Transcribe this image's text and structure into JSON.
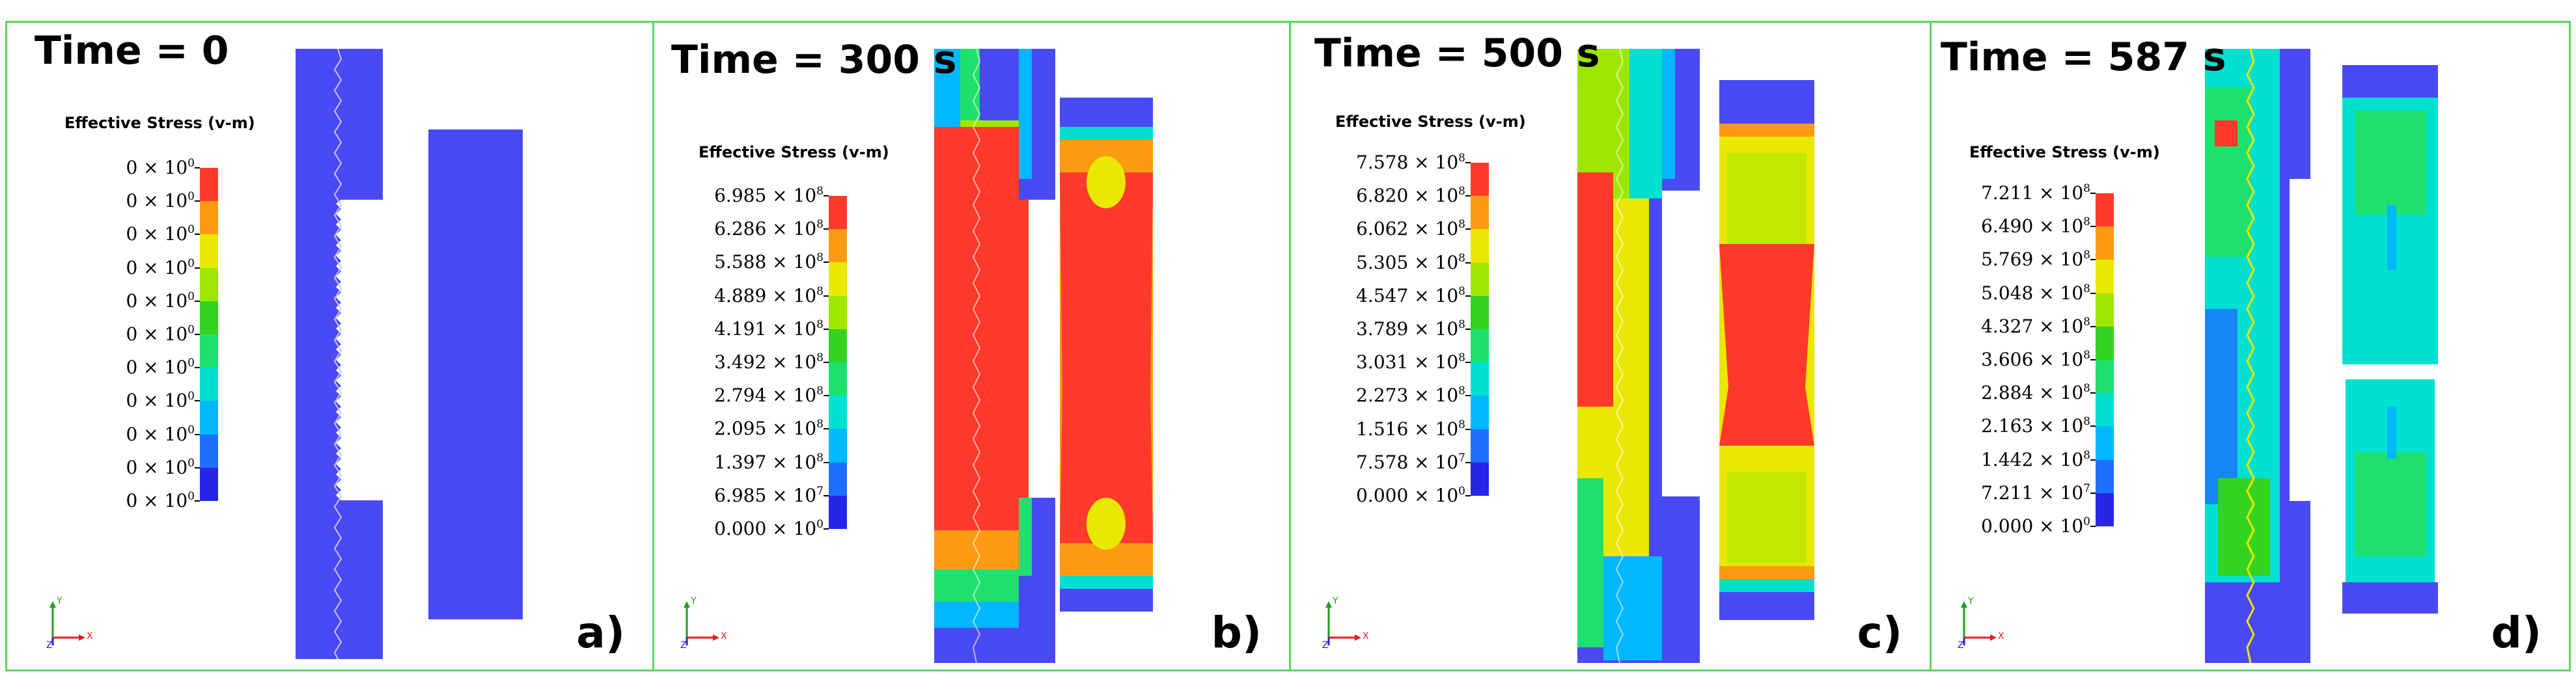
{
  "figure": {
    "colorbar_colors": [
      "#2626e6",
      "#1f6fff",
      "#00b8ff",
      "#00e0d0",
      "#1ee06e",
      "#33d420",
      "#9ee600",
      "#e8e800",
      "#ff9a14",
      "#ff3a2a"
    ],
    "body_color": "#4a4af5",
    "panels": [
      {
        "id": "a",
        "time_label": "Time = 0",
        "legend_title": "Effective Stress (v-m)",
        "ticks": [
          {
            "m": "0",
            "e": "0"
          },
          {
            "m": "0",
            "e": "0"
          },
          {
            "m": "0",
            "e": "0"
          },
          {
            "m": "0",
            "e": "0"
          },
          {
            "m": "0",
            "e": "0"
          },
          {
            "m": "0",
            "e": "0"
          },
          {
            "m": "0",
            "e": "0"
          },
          {
            "m": "0",
            "e": "0"
          },
          {
            "m": "0",
            "e": "0"
          },
          {
            "m": "0",
            "e": "0"
          },
          {
            "m": "0",
            "e": "0"
          }
        ],
        "sub_label": "a)",
        "axis_labels": {
          "x": "X",
          "y": "Y",
          "z": "Z"
        }
      },
      {
        "id": "b",
        "time_label": "Time = 300 s",
        "legend_title": "Effective Stress (v-m)",
        "ticks": [
          {
            "m": "6.985",
            "e": "8"
          },
          {
            "m": "6.286",
            "e": "8"
          },
          {
            "m": "5.588",
            "e": "8"
          },
          {
            "m": "4.889",
            "e": "8"
          },
          {
            "m": "4.191",
            "e": "8"
          },
          {
            "m": "3.492",
            "e": "8"
          },
          {
            "m": "2.794",
            "e": "8"
          },
          {
            "m": "2.095",
            "e": "8"
          },
          {
            "m": "1.397",
            "e": "8"
          },
          {
            "m": "6.985",
            "e": "7"
          },
          {
            "m": "0.000",
            "e": "0"
          }
        ],
        "sub_label": "b)",
        "axis_labels": {
          "x": "X",
          "y": "Y",
          "z": "Z"
        }
      },
      {
        "id": "c",
        "time_label": "Time = 500 s",
        "legend_title": "Effective Stress (v-m)",
        "ticks": [
          {
            "m": "7.578",
            "e": "8"
          },
          {
            "m": "6.820",
            "e": "8"
          },
          {
            "m": "6.062",
            "e": "8"
          },
          {
            "m": "5.305",
            "e": "8"
          },
          {
            "m": "4.547",
            "e": "8"
          },
          {
            "m": "3.789",
            "e": "8"
          },
          {
            "m": "3.031",
            "e": "8"
          },
          {
            "m": "2.273",
            "e": "8"
          },
          {
            "m": "1.516",
            "e": "8"
          },
          {
            "m": "7.578",
            "e": "7"
          },
          {
            "m": "0.000",
            "e": "0"
          }
        ],
        "sub_label": "c)",
        "axis_labels": {
          "x": "X",
          "y": "Y",
          "z": "Z"
        }
      },
      {
        "id": "d",
        "time_label": "Time = 587 s",
        "legend_title": "Effective Stress (v-m)",
        "ticks": [
          {
            "m": "7.211",
            "e": "8"
          },
          {
            "m": "6.490",
            "e": "8"
          },
          {
            "m": "5.769",
            "e": "8"
          },
          {
            "m": "5.048",
            "e": "8"
          },
          {
            "m": "4.327",
            "e": "8"
          },
          {
            "m": "3.606",
            "e": "8"
          },
          {
            "m": "2.884",
            "e": "8"
          },
          {
            "m": "2.163",
            "e": "8"
          },
          {
            "m": "1.442",
            "e": "8"
          },
          {
            "m": "7.211",
            "e": "7"
          },
          {
            "m": "0.000",
            "e": "0"
          }
        ],
        "sub_label": "d)",
        "axis_labels": {
          "x": "X",
          "y": "Y",
          "z": "Z"
        }
      }
    ]
  }
}
